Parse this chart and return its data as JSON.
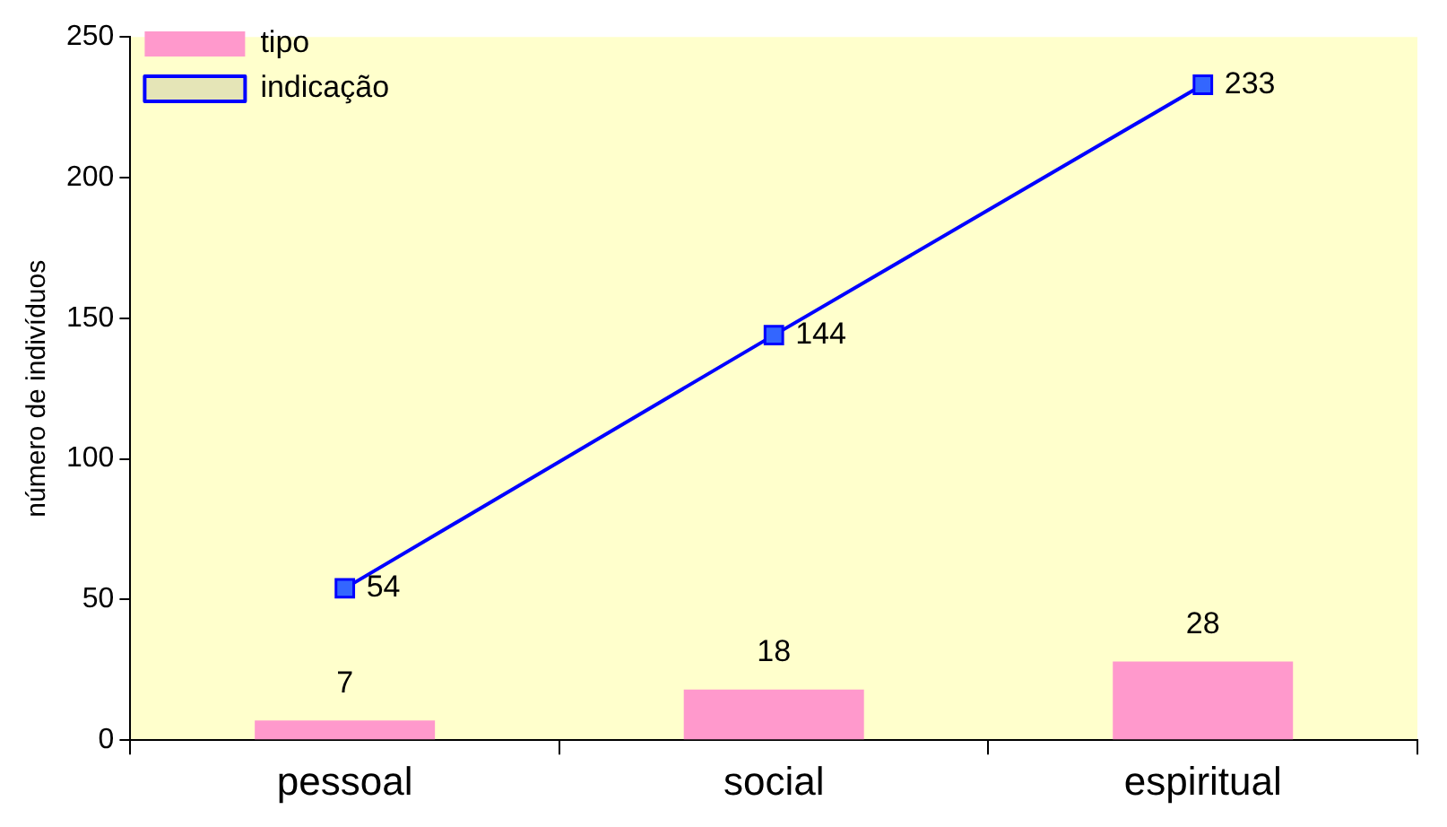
{
  "chart_data": {
    "type": "bar",
    "ylabel": "número de indivíduos",
    "categories": [
      "pessoal",
      "social",
      "espiritual"
    ],
    "series": [
      {
        "name": "tipo",
        "color": "#ff99cc",
        "values": [
          7,
          18,
          28
        ]
      },
      {
        "name": "indicação",
        "type": "line",
        "color": "#0000ff",
        "values": [
          54,
          144,
          233
        ]
      }
    ],
    "ylim": [
      0,
      250
    ],
    "yticks": [
      0,
      50,
      100,
      150,
      200,
      250
    ],
    "grid": false,
    "legend": "top left",
    "marker": "square",
    "data_labels": true
  }
}
